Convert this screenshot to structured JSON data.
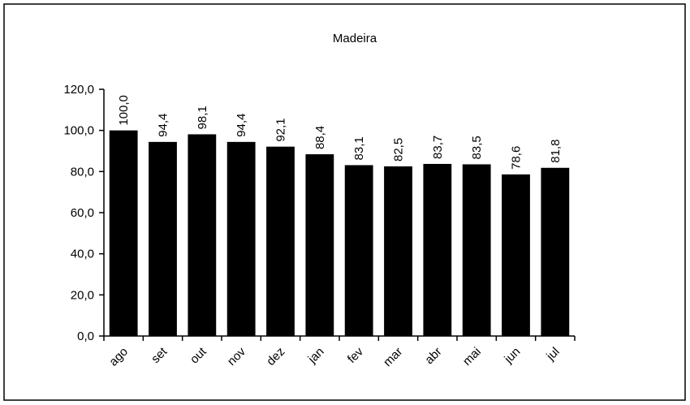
{
  "chart_data": {
    "type": "bar",
    "title": "Madeira",
    "categories": [
      "ago",
      "set",
      "out",
      "nov",
      "dez",
      "jan",
      "fev",
      "mar",
      "abr",
      "mai",
      "jun",
      "jul"
    ],
    "values": [
      100.0,
      94.4,
      98.1,
      94.4,
      92.1,
      88.4,
      83.1,
      82.5,
      83.7,
      83.5,
      78.6,
      81.8
    ],
    "value_labels": [
      "100,0",
      "94,4",
      "98,1",
      "94,4",
      "92,1",
      "88,4",
      "83,1",
      "82,5",
      "83,7",
      "83,5",
      "78,6",
      "81,8"
    ],
    "color": "#000000",
    "ylim": [
      0,
      120
    ],
    "yticks": [
      {
        "value": 0,
        "label": "0,0"
      },
      {
        "value": 20,
        "label": "20,0"
      },
      {
        "value": 40,
        "label": "40,0"
      },
      {
        "value": 60,
        "label": "60,0"
      },
      {
        "value": 80,
        "label": "80,0"
      },
      {
        "value": 100,
        "label": "100,0"
      },
      {
        "value": 120,
        "label": "120,0"
      }
    ],
    "grid": false
  }
}
